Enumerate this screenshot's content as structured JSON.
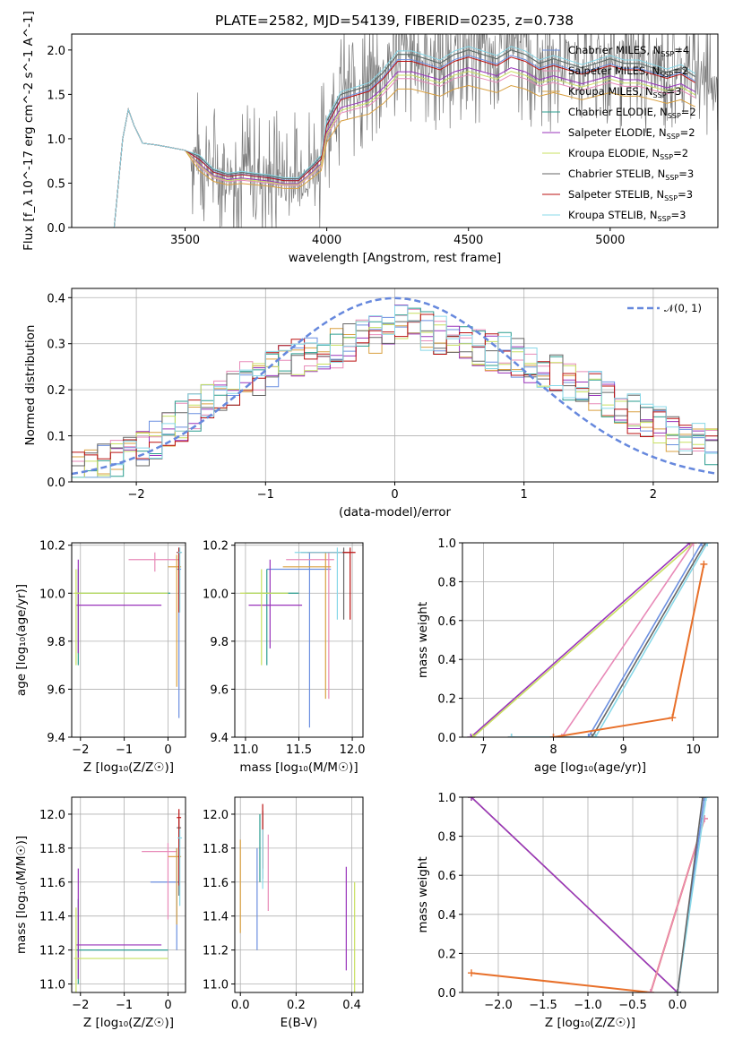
{
  "colors": {
    "chabrier_miles": "#6b8fe0",
    "salpeter_miles": "#e88ab8",
    "kroupa_miles": "#d9a040",
    "chabrier_elodie": "#2a9d8f",
    "salpeter_elodie": "#9933bb",
    "kroupa_elodie": "#c8e060",
    "chabrier_stelib": "#666666",
    "salpeter_stelib": "#bb1111",
    "kroupa_stelib": "#88d8e8",
    "normal": "#6688dd",
    "orange": "#e8702a",
    "grid": "#b0b0b0"
  },
  "chart_data": [
    {
      "id": "spectrum",
      "type": "line",
      "title": "PLATE=2582, MJD=54139, FIBERID=0235, z=0.738",
      "xlabel": "wavelength [Angstrom, rest frame]",
      "ylabel": "Flux [f_λ 10^-17 erg cm^-2 s^-1 A^-1]",
      "xlim": [
        3100,
        5380
      ],
      "ylim": [
        0,
        2.18
      ],
      "xticks": [
        3500,
        4000,
        4500,
        5000
      ],
      "yticks": [
        0.0,
        0.5,
        1.0,
        1.5,
        2.0
      ],
      "grid": false,
      "legend_position": "right",
      "legend": [
        {
          "key": "chabrier_miles",
          "label": "Chabrier MILES, N",
          "sub": "SSP",
          "eq": "=4"
        },
        {
          "key": "salpeter_miles",
          "label": "Salpeter MILES, N",
          "sub": "SSP",
          "eq": "=2"
        },
        {
          "key": "kroupa_miles",
          "label": "Kroupa MILES, N",
          "sub": "SSP",
          "eq": "=3"
        },
        {
          "key": "chabrier_elodie",
          "label": "Chabrier ELODIE, N",
          "sub": "SSP",
          "eq": "=2"
        },
        {
          "key": "salpeter_elodie",
          "label": "Salpeter ELODIE, N",
          "sub": "SSP",
          "eq": "=2"
        },
        {
          "key": "kroupa_elodie",
          "label": "Kroupa ELODIE, N",
          "sub": "SSP",
          "eq": "=2"
        },
        {
          "key": "chabrier_stelib",
          "label": "Chabrier STELIB, N",
          "sub": "SSP",
          "eq": "=3"
        },
        {
          "key": "salpeter_stelib",
          "label": "Salpeter STELIB, N",
          "sub": "SSP",
          "eq": "=3"
        },
        {
          "key": "kroupa_stelib",
          "label": "Kroupa STELIB, N",
          "sub": "SSP",
          "eq": "=3"
        }
      ],
      "model_x": [
        3200,
        3250,
        3280,
        3300,
        3320,
        3350,
        3400,
        3450,
        3500,
        3550,
        3600,
        3650,
        3700,
        3750,
        3800,
        3850,
        3900,
        3950,
        3980,
        4000,
        4050,
        4100,
        4150,
        4200,
        4250,
        4300,
        4350,
        4400,
        4450,
        4500,
        4550,
        4600,
        4650,
        4700,
        4750,
        4800,
        4850,
        4900,
        4950,
        5000,
        5050,
        5100,
        5150,
        5200,
        5250,
        5300
      ],
      "model_y": [
        0.0,
        0.0,
        1.0,
        1.33,
        1.15,
        0.95,
        0.93,
        0.9,
        0.87,
        0.8,
        0.65,
        0.6,
        0.62,
        0.6,
        0.58,
        0.55,
        0.55,
        0.7,
        0.8,
        1.2,
        1.5,
        1.55,
        1.6,
        1.75,
        1.95,
        1.95,
        1.9,
        1.85,
        1.95,
        2.0,
        1.95,
        1.9,
        2.0,
        1.95,
        1.85,
        1.9,
        1.85,
        1.8,
        1.85,
        1.9,
        1.85,
        1.85,
        1.8,
        1.75,
        1.8,
        1.7
      ],
      "model_scale": {
        "chabrier_miles": 0.97,
        "salpeter_miles": 0.86,
        "kroupa_miles": 0.8,
        "chabrier_elodie": 1.0,
        "salpeter_elodie": 0.9,
        "kroupa_elodie": 0.88,
        "chabrier_stelib": 1.0,
        "salpeter_stelib": 0.96,
        "kroupa_stelib": 1.02
      },
      "data_range": [
        3520,
        5380
      ],
      "data_noise": 0.45
    },
    {
      "id": "residuals",
      "type": "line",
      "xlabel": "(data-model)/error",
      "ylabel": "Normed distribution",
      "xlim": [
        -2.5,
        2.5
      ],
      "ylim": [
        0,
        0.42
      ],
      "xticks": [
        -2,
        -1,
        0,
        1,
        2
      ],
      "yticks": [
        0.0,
        0.1,
        0.2,
        0.3,
        0.4
      ],
      "grid": true,
      "legend_position": "top-right",
      "legend": [
        {
          "label": "𝒩(0, 1)",
          "style": "dashed"
        }
      ],
      "bin_width": 0.1,
      "histogram_center": [
        0.02,
        0.03,
        0.04,
        0.05,
        0.06,
        0.07,
        0.09,
        0.11,
        0.13,
        0.15,
        0.17,
        0.18,
        0.2,
        0.22,
        0.23,
        0.25,
        0.26,
        0.27,
        0.28,
        0.28,
        0.29,
        0.3,
        0.31,
        0.32,
        0.33,
        0.35,
        0.34,
        0.33,
        0.32,
        0.31,
        0.3,
        0.29,
        0.28,
        0.28,
        0.27,
        0.26,
        0.25,
        0.24,
        0.22,
        0.21,
        0.2,
        0.18,
        0.17,
        0.15,
        0.14,
        0.12,
        0.11,
        0.1,
        0.09,
        0.08
      ]
    },
    {
      "id": "age_vs_z",
      "type": "scatter",
      "xlabel": "Z [log10(Z/Z☉)]",
      "ylabel": "age [log10(age/yr)]",
      "xlim": [
        -2.2,
        0.4
      ],
      "ylim": [
        9.4,
        10.21
      ],
      "xticks": [
        -2,
        -1,
        0
      ],
      "yticks": [
        9.4,
        9.6,
        9.8,
        10.0,
        10.2
      ],
      "grid": true
    },
    {
      "id": "age_vs_mass",
      "type": "scatter",
      "xlabel": "mass [log10(M/M☉)]",
      "xlim": [
        10.9,
        12.1
      ],
      "ylim": [
        9.4,
        10.21
      ],
      "xticks": [
        11.0,
        11.5,
        12.0
      ],
      "yticks": [
        9.4,
        9.6,
        9.8,
        10.0,
        10.2
      ],
      "grid": true
    },
    {
      "id": "mw_vs_age",
      "type": "line",
      "xlabel": "age [log10(age/yr)]",
      "ylabel": "mass weight",
      "xlim": [
        6.7,
        10.35
      ],
      "ylim": [
        0,
        1
      ],
      "xticks": [
        7,
        8,
        9,
        10
      ],
      "yticks": [
        0.0,
        0.2,
        0.4,
        0.6,
        0.8,
        1.0
      ],
      "grid": true
    },
    {
      "id": "mass_vs_z",
      "type": "scatter",
      "xlabel": "Z [log10(Z/Z☉)]",
      "ylabel": "mass [log10(M/M☉)]",
      "xlim": [
        -2.2,
        0.4
      ],
      "ylim": [
        10.95,
        12.1
      ],
      "xticks": [
        -2,
        -1,
        0
      ],
      "yticks": [
        11.0,
        11.2,
        11.4,
        11.6,
        11.8,
        12.0
      ],
      "grid": true
    },
    {
      "id": "mass_vs_ebv",
      "type": "scatter",
      "xlabel": "E(B-V)",
      "xlim": [
        -0.02,
        0.44
      ],
      "ylim": [
        10.95,
        12.1
      ],
      "xticks": [
        0.0,
        0.2,
        0.4
      ],
      "yticks": [
        11.0,
        11.2,
        11.4,
        11.6,
        11.8,
        12.0
      ],
      "grid": true
    },
    {
      "id": "mw_vs_z",
      "type": "line",
      "xlabel": "Z [log10(Z/Z☉)]",
      "ylabel": "mass weight",
      "xlim": [
        -2.4,
        0.45
      ],
      "ylim": [
        0,
        1
      ],
      "xticks": [
        -2.0,
        -1.5,
        -1.0,
        -0.5,
        0.0
      ],
      "yticks": [
        0.0,
        0.2,
        0.4,
        0.6,
        0.8,
        1.0
      ],
      "grid": true
    }
  ],
  "panels_a": {
    "zdata": [
      {
        "key": "chabrier_miles",
        "x": 0.25,
        "xerr": [
          0.05,
          0.05
        ],
        "y": 10.1,
        "yerr": [
          0.62,
          0.07
        ]
      },
      {
        "key": "salpeter_miles",
        "x": -0.3,
        "xerr": [
          0.6,
          0.55
        ],
        "y": 10.14,
        "yerr": [
          0.05,
          0.03
        ]
      },
      {
        "key": "kroupa_miles",
        "x": 0.2,
        "xerr": [
          0.2,
          0.1
        ],
        "y": 10.11,
        "yerr": [
          0.5,
          0.05
        ]
      },
      {
        "key": "chabrier_elodie",
        "x": -2.05,
        "xerr": [
          0.05,
          2.1
        ],
        "y": 10.0,
        "yerr": [
          0.3,
          0.1
        ]
      },
      {
        "key": "salpeter_elodie",
        "x": -2.05,
        "xerr": [
          0.05,
          1.9
        ],
        "y": 9.95,
        "yerr": [
          0.2,
          0.19
        ]
      },
      {
        "key": "kroupa_elodie",
        "x": -2.1,
        "xerr": [
          0.05,
          2.1
        ],
        "y": 10.0,
        "yerr": [
          0.3,
          0.1
        ]
      },
      {
        "key": "chabrier_stelib",
        "x": 0.25,
        "xerr": [
          0.05,
          0.05
        ],
        "y": 10.17,
        "yerr": [
          0.25,
          0.02
        ]
      },
      {
        "key": "salpeter_stelib",
        "x": 0.25,
        "xerr": [
          0.05,
          0.05
        ],
        "y": 10.17,
        "yerr": [
          0.25,
          0.02
        ]
      },
      {
        "key": "kroupa_stelib",
        "x": 0.27,
        "xerr": [
          0.05,
          0.05
        ],
        "y": 10.17,
        "yerr": [
          0.25,
          0.02
        ]
      }
    ],
    "mdata": [
      {
        "key": "chabrier_miles",
        "x": 11.6,
        "xerr": [
          0.4,
          0.2
        ],
        "y": 10.1,
        "yerr": [
          0.66,
          0.07
        ]
      },
      {
        "key": "salpeter_miles",
        "x": 11.78,
        "xerr": [
          0.4,
          0.05
        ],
        "y": 10.14,
        "yerr": [
          0.58,
          0.03
        ]
      },
      {
        "key": "kroupa_miles",
        "x": 11.75,
        "xerr": [
          0.4,
          0.05
        ],
        "y": 10.11,
        "yerr": [
          0.55,
          0.06
        ]
      },
      {
        "key": "chabrier_elodie",
        "x": 11.2,
        "xerr": [
          0.2,
          0.3
        ],
        "y": 10.0,
        "yerr": [
          0.3,
          0.1
        ]
      },
      {
        "key": "salpeter_elodie",
        "x": 11.23,
        "xerr": [
          0.2,
          0.3
        ],
        "y": 9.95,
        "yerr": [
          0.18,
          0.19
        ]
      },
      {
        "key": "kroupa_elodie",
        "x": 11.15,
        "xerr": [
          0.2,
          0.25
        ],
        "y": 10.0,
        "yerr": [
          0.3,
          0.1
        ]
      },
      {
        "key": "chabrier_stelib",
        "x": 11.92,
        "xerr": [
          0.4,
          0.05
        ],
        "y": 10.17,
        "yerr": [
          0.28,
          0.02
        ]
      },
      {
        "key": "salpeter_stelib",
        "x": 11.98,
        "xerr": [
          0.4,
          0.05
        ],
        "y": 10.17,
        "yerr": [
          0.28,
          0.02
        ]
      },
      {
        "key": "kroupa_stelib",
        "x": 11.86,
        "xerr": [
          0.4,
          0.05
        ],
        "y": 10.17,
        "yerr": [
          0.28,
          0.02
        ]
      }
    ],
    "massz": [
      {
        "key": "chabrier_miles",
        "x": 0.2,
        "xerr": [
          0.6,
          0.05
        ],
        "y": 11.6,
        "yerr": [
          0.4,
          0.2
        ]
      },
      {
        "key": "salpeter_miles",
        "x": 0.0,
        "xerr": [
          0.6,
          0.2
        ],
        "y": 11.78,
        "yerr": [
          0.4,
          0.05
        ]
      },
      {
        "key": "kroupa_miles",
        "x": 0.2,
        "xerr": [
          0.2,
          0.1
        ],
        "y": 11.75,
        "yerr": [
          0.4,
          0.05
        ]
      },
      {
        "key": "chabrier_elodie",
        "x": -2.05,
        "xerr": [
          0.05,
          2.05
        ],
        "y": 11.2,
        "yerr": [
          0.2,
          0.3
        ]
      },
      {
        "key": "salpeter_elodie",
        "x": -2.05,
        "xerr": [
          0.05,
          1.9
        ],
        "y": 11.23,
        "yerr": [
          0.2,
          0.45
        ]
      },
      {
        "key": "kroupa_elodie",
        "x": -2.1,
        "xerr": [
          0.05,
          2.1
        ],
        "y": 11.15,
        "yerr": [
          0.2,
          0.3
        ]
      },
      {
        "key": "chabrier_stelib",
        "x": 0.25,
        "xerr": [
          0.05,
          0.05
        ],
        "y": 11.92,
        "yerr": [
          0.4,
          0.05
        ]
      },
      {
        "key": "salpeter_stelib",
        "x": 0.25,
        "xerr": [
          0.05,
          0.05
        ],
        "y": 11.98,
        "yerr": [
          0.4,
          0.05
        ]
      },
      {
        "key": "kroupa_stelib",
        "x": 0.27,
        "xerr": [
          0.05,
          0.05
        ],
        "y": 11.86,
        "yerr": [
          0.4,
          0.05
        ]
      }
    ],
    "massebv": [
      {
        "key": "chabrier_miles",
        "x": 0.06,
        "y": 11.6,
        "yerr": [
          0.4,
          0.2
        ]
      },
      {
        "key": "salpeter_miles",
        "x": 0.1,
        "y": 11.78,
        "yerr": [
          0.35,
          0.1
        ]
      },
      {
        "key": "kroupa_miles",
        "x": 0.0,
        "y": 11.75,
        "yerr": [
          0.45,
          0.1
        ]
      },
      {
        "key": "chabrier_elodie",
        "x": 0.07,
        "y": 11.9,
        "yerr": [
          0.3,
          0.1
        ]
      },
      {
        "key": "salpeter_elodie",
        "x": 0.38,
        "y": 11.23,
        "yerr": [
          0.15,
          0.46
        ]
      },
      {
        "key": "kroupa_elodie",
        "x": 0.41,
        "y": 11.15,
        "yerr": [
          0.2,
          0.45
        ]
      },
      {
        "key": "chabrier_stelib",
        "x": 0.08,
        "y": 11.92,
        "yerr": [
          0.3,
          0.1
        ]
      },
      {
        "key": "salpeter_stelib",
        "x": 0.08,
        "y": 11.98,
        "yerr": [
          0.3,
          0.08
        ]
      },
      {
        "key": "kroupa_stelib",
        "x": 0.08,
        "y": 11.86,
        "yerr": [
          0.3,
          0.05
        ]
      }
    ],
    "mwage": [
      {
        "key": "salpeter_elodie",
        "pts": [
          [
            6.82,
            0.0
          ],
          [
            9.95,
            1.0
          ]
        ]
      },
      {
        "key": "kroupa_elodie",
        "pts": [
          [
            6.85,
            0.0
          ],
          [
            10.0,
            1.0
          ]
        ]
      },
      {
        "key": "salpeter_miles",
        "pts": [
          [
            8.0,
            0.0
          ],
          [
            8.12,
            0.0
          ],
          [
            10.0,
            1.0
          ]
        ]
      },
      {
        "key": "chabrier_miles",
        "pts": [
          [
            8.0,
            0.0
          ],
          [
            8.5,
            0.0
          ],
          [
            10.12,
            1.0
          ]
        ]
      },
      {
        "key": "chabrier_stelib",
        "pts": [
          [
            7.4,
            0.0
          ],
          [
            8.55,
            0.0
          ],
          [
            10.17,
            1.0
          ]
        ]
      },
      {
        "key": "kroupa_stelib",
        "pts": [
          [
            7.4,
            0.0
          ],
          [
            8.6,
            0.0
          ],
          [
            10.2,
            1.0
          ]
        ]
      },
      {
        "key": "orange",
        "pts": [
          [
            8.0,
            0.0
          ],
          [
            9.7,
            0.1
          ],
          [
            10.15,
            0.89
          ]
        ]
      }
    ],
    "mwz": [
      {
        "key": "kroupa_elodie",
        "pts": [
          [
            -2.3,
            1.0
          ],
          [
            0.0,
            0.0
          ]
        ]
      },
      {
        "key": "salpeter_elodie",
        "pts": [
          [
            -2.3,
            1.0
          ],
          [
            0.0,
            0.0
          ]
        ]
      },
      {
        "key": "orange",
        "pts": [
          [
            -2.3,
            0.1
          ],
          [
            -0.3,
            0.0
          ],
          [
            0.3,
            0.89
          ]
        ]
      },
      {
        "key": "salpeter_miles",
        "pts": [
          [
            -0.3,
            0.0
          ],
          [
            0.3,
            0.89
          ]
        ]
      },
      {
        "key": "chabrier_miles",
        "pts": [
          [
            0.0,
            0.0
          ],
          [
            0.3,
            1.0
          ]
        ]
      },
      {
        "key": "kroupa_stelib",
        "pts": [
          [
            0.0,
            0.0
          ],
          [
            0.32,
            1.0
          ]
        ]
      },
      {
        "key": "chabrier_stelib",
        "pts": [
          [
            0.0,
            0.0
          ],
          [
            0.28,
            1.0
          ]
        ]
      }
    ]
  }
}
